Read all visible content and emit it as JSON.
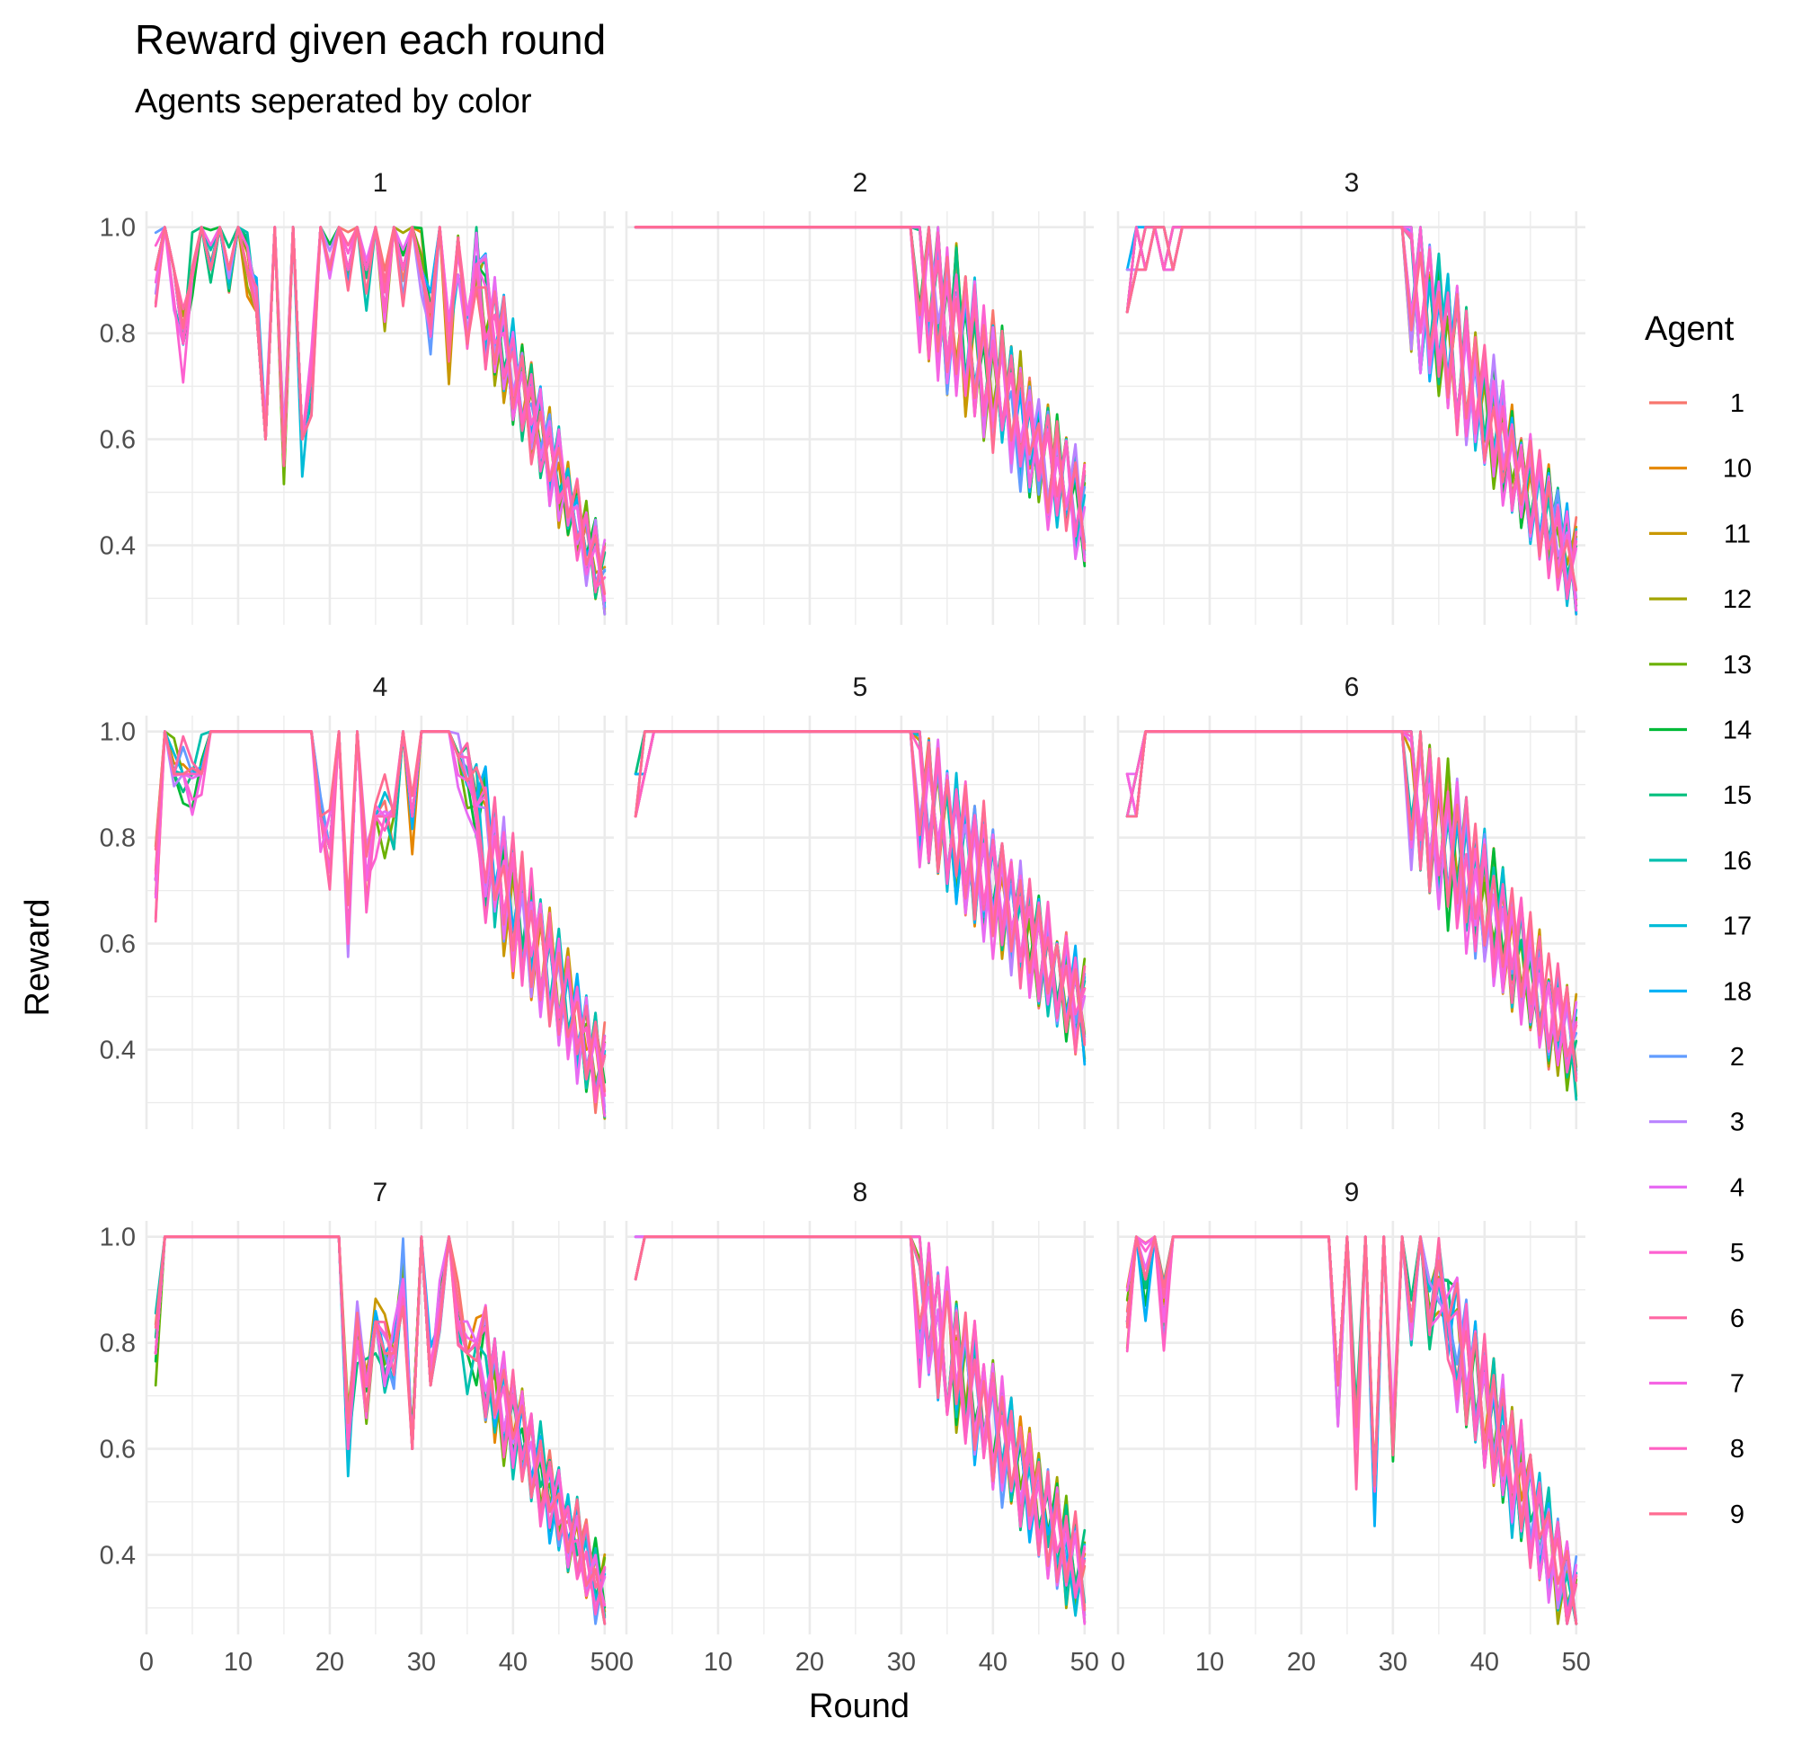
{
  "chart_data": {
    "type": "line",
    "title": "Reward given each round",
    "subtitle": "Agents seperated by color",
    "xlabel": "Round",
    "ylabel": "Reward",
    "xlim": [
      0,
      51
    ],
    "ylim": [
      0.25,
      1.03
    ],
    "x_ticks": [
      0,
      10,
      20,
      30,
      40,
      50
    ],
    "y_ticks": [
      0.4,
      0.6,
      0.8,
      1.0
    ],
    "y_tick_labels": [
      "0.4",
      "0.6",
      "0.8",
      "1.0"
    ],
    "grid": true,
    "facets": [
      "1",
      "2",
      "3",
      "4",
      "5",
      "6",
      "7",
      "8",
      "9"
    ],
    "legend": {
      "title": "Agent",
      "position": "right",
      "entries": [
        {
          "label": "1",
          "color": "#F8766D"
        },
        {
          "label": "10",
          "color": "#E58700"
        },
        {
          "label": "11",
          "color": "#C99800"
        },
        {
          "label": "12",
          "color": "#A3A500"
        },
        {
          "label": "13",
          "color": "#6BB100"
        },
        {
          "label": "14",
          "color": "#00BA38"
        },
        {
          "label": "15",
          "color": "#00BF7D"
        },
        {
          "label": "16",
          "color": "#00C0AF"
        },
        {
          "label": "17",
          "color": "#00BCD8"
        },
        {
          "label": "18",
          "color": "#00B0F6"
        },
        {
          "label": "2",
          "color": "#619CFF"
        },
        {
          "label": "3",
          "color": "#B983FF"
        },
        {
          "label": "4",
          "color": "#E76BF3"
        },
        {
          "label": "5",
          "color": "#FD61D1"
        },
        {
          "label": "6",
          "color": "#FF67A4"
        },
        {
          "label": "7",
          "color": "#F564E3"
        },
        {
          "label": "8",
          "color": "#FF61C3"
        },
        {
          "label": "9",
          "color": "#FF6C91"
        }
      ]
    },
    "panel_profiles": [
      {
        "facet": "1",
        "shape": "irregular",
        "early": [
          [
            1,
            0.92
          ],
          [
            2,
            1.0
          ],
          [
            3,
            0.92
          ],
          [
            4,
            0.78
          ],
          [
            5,
            0.92
          ],
          [
            6,
            1.0
          ],
          [
            7,
            0.92
          ],
          [
            8,
            1.0
          ],
          [
            9,
            0.92
          ],
          [
            10,
            1.0
          ],
          [
            11,
            0.92
          ],
          [
            12,
            0.84
          ],
          [
            13,
            0.6
          ],
          [
            14,
            1.0
          ],
          [
            15,
            0.55
          ],
          [
            16,
            1.0
          ],
          [
            17,
            0.6
          ],
          [
            18,
            0.72
          ],
          [
            19,
            1.0
          ],
          [
            20,
            0.92
          ],
          [
            21,
            1.0
          ],
          [
            22,
            0.92
          ],
          [
            23,
            1.0
          ],
          [
            24,
            0.92
          ],
          [
            25,
            1.0
          ],
          [
            26,
            0.84
          ],
          [
            27,
            1.0
          ],
          [
            28,
            0.92
          ],
          [
            29,
            1.0
          ],
          [
            30,
            0.92
          ],
          [
            31,
            0.84
          ],
          [
            32,
            1.0
          ],
          [
            33,
            0.78
          ],
          [
            34,
            0.98
          ],
          [
            35,
            0.78
          ],
          [
            36,
            0.93
          ]
        ],
        "late_start": 37,
        "late_end": 50,
        "late_from": 0.85,
        "late_to": 0.33,
        "late_amp": 0.15
      },
      {
        "facet": "2",
        "shape": "plateau",
        "early": [
          [
            1,
            1.0
          ],
          [
            31,
            1.0
          ]
        ],
        "late_start": 32,
        "late_end": 50,
        "late_from": 0.92,
        "late_to": 0.45,
        "late_amp": 0.22
      },
      {
        "facet": "3",
        "shape": "plateau",
        "early": [
          [
            1,
            0.84
          ],
          [
            2,
            0.92
          ],
          [
            3,
            0.92
          ],
          [
            4,
            1.0
          ],
          [
            5,
            0.92
          ],
          [
            6,
            0.92
          ],
          [
            7,
            1.0
          ],
          [
            31,
            1.0
          ]
        ],
        "late_start": 32,
        "late_end": 50,
        "late_from": 0.9,
        "late_to": 0.35,
        "late_amp": 0.2
      },
      {
        "facet": "4",
        "shape": "irregular",
        "early": [
          [
            1,
            0.72
          ],
          [
            2,
            1.0
          ],
          [
            3,
            0.92
          ],
          [
            4,
            0.92
          ],
          [
            5,
            0.92
          ],
          [
            6,
            0.92
          ],
          [
            7,
            1.0
          ],
          [
            18,
            1.0
          ],
          [
            19,
            0.84
          ],
          [
            20,
            0.78
          ],
          [
            21,
            1.0
          ],
          [
            22,
            0.6
          ],
          [
            23,
            1.0
          ],
          [
            24,
            0.72
          ],
          [
            25,
            0.84
          ],
          [
            26,
            0.84
          ],
          [
            27,
            0.84
          ],
          [
            28,
            1.0
          ],
          [
            29,
            0.84
          ],
          [
            30,
            1.0
          ],
          [
            33,
            1.0
          ],
          [
            36,
            0.86
          ]
        ],
        "late_start": 37,
        "late_end": 50,
        "late_from": 0.78,
        "late_to": 0.35,
        "late_amp": 0.2
      },
      {
        "facet": "5",
        "shape": "plateau",
        "early": [
          [
            1,
            0.84
          ],
          [
            2,
            0.92
          ],
          [
            3,
            1.0
          ],
          [
            31,
            1.0
          ]
        ],
        "late_start": 32,
        "late_end": 50,
        "late_from": 0.9,
        "late_to": 0.47,
        "late_amp": 0.2
      },
      {
        "facet": "6",
        "shape": "plateau",
        "early": [
          [
            1,
            0.84
          ],
          [
            2,
            0.84
          ],
          [
            3,
            1.0
          ],
          [
            31,
            1.0
          ]
        ],
        "late_start": 32,
        "late_end": 50,
        "late_from": 0.9,
        "late_to": 0.4,
        "late_amp": 0.22
      },
      {
        "facet": "7",
        "shape": "irregular",
        "early": [
          [
            1,
            0.78
          ],
          [
            2,
            1.0
          ],
          [
            21,
            1.0
          ],
          [
            22,
            0.6
          ],
          [
            23,
            0.84
          ],
          [
            24,
            0.72
          ],
          [
            25,
            0.84
          ],
          [
            26,
            0.78
          ],
          [
            27,
            0.78
          ],
          [
            28,
            0.92
          ],
          [
            29,
            0.6
          ],
          [
            30,
            1.0
          ],
          [
            31,
            0.72
          ],
          [
            32,
            0.84
          ],
          [
            33,
            1.0
          ],
          [
            34,
            0.84
          ],
          [
            35,
            0.78
          ],
          [
            36,
            0.8
          ]
        ],
        "late_start": 37,
        "late_end": 50,
        "late_from": 0.75,
        "late_to": 0.32,
        "late_amp": 0.15
      },
      {
        "facet": "8",
        "shape": "plateau",
        "early": [
          [
            1,
            0.92
          ],
          [
            2,
            1.0
          ],
          [
            31,
            1.0
          ]
        ],
        "late_start": 32,
        "late_end": 50,
        "late_from": 0.88,
        "late_to": 0.35,
        "late_amp": 0.2
      },
      {
        "facet": "9",
        "shape": "irregular",
        "early": [
          [
            1,
            0.84
          ],
          [
            2,
            1.0
          ],
          [
            3,
            0.92
          ],
          [
            4,
            1.0
          ],
          [
            5,
            0.84
          ],
          [
            6,
            1.0
          ],
          [
            23,
            1.0
          ],
          [
            24,
            0.72
          ],
          [
            25,
            1.0
          ],
          [
            26,
            0.6
          ],
          [
            27,
            1.0
          ],
          [
            28,
            0.52
          ],
          [
            29,
            1.0
          ],
          [
            30,
            0.6
          ],
          [
            31,
            1.0
          ],
          [
            32,
            0.84
          ],
          [
            33,
            1.0
          ],
          [
            34,
            0.84
          ],
          [
            35,
            0.92
          ],
          [
            36,
            0.84
          ]
        ],
        "late_start": 37,
        "late_end": 50,
        "late_from": 0.8,
        "late_to": 0.3,
        "late_amp": 0.2
      }
    ]
  }
}
